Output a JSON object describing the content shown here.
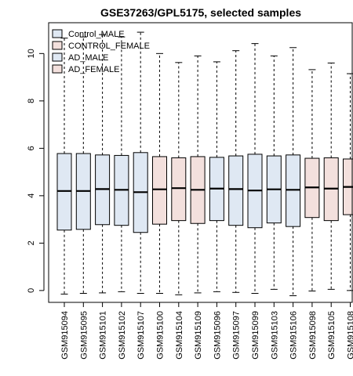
{
  "chart_data": {
    "type": "boxplot",
    "title": "GSE37263/GPL5175, selected samples",
    "ylim": [
      -0.5,
      11.3
    ],
    "yticks": [
      0,
      2,
      4,
      6,
      8,
      10
    ],
    "legend": [
      {
        "label": "Control_MALE",
        "color": "#dfe8f3"
      },
      {
        "label": "CONTROL_FEMALE",
        "color": "#f3e0dd"
      },
      {
        "label": "AD_MALE",
        "color": "#dfe8f3"
      },
      {
        "label": "AD_FEMALE",
        "color": "#f3e0dd"
      }
    ],
    "legend_position": "top-left",
    "boxes": [
      {
        "sample": "GSM915094",
        "group": 0,
        "whisker_low": -0.15,
        "q1": 2.55,
        "median": 4.2,
        "q3": 5.78,
        "whisker_high": 10.65
      },
      {
        "sample": "GSM915095",
        "group": 0,
        "whisker_low": -0.12,
        "q1": 2.58,
        "median": 4.2,
        "q3": 5.78,
        "whisker_high": 10.7
      },
      {
        "sample": "GSM915101",
        "group": 0,
        "whisker_low": -0.1,
        "q1": 2.78,
        "median": 4.28,
        "q3": 5.72,
        "whisker_high": 10.8
      },
      {
        "sample": "GSM915102",
        "group": 0,
        "whisker_low": -0.05,
        "q1": 2.75,
        "median": 4.25,
        "q3": 5.7,
        "whisker_high": 10.7
      },
      {
        "sample": "GSM915107",
        "group": 0,
        "whisker_low": -0.12,
        "q1": 2.45,
        "median": 4.15,
        "q3": 5.82,
        "whisker_high": 10.9
      },
      {
        "sample": "GSM915100",
        "group": 1,
        "whisker_low": -0.12,
        "q1": 2.8,
        "median": 4.27,
        "q3": 5.65,
        "whisker_high": 10.0
      },
      {
        "sample": "GSM915104",
        "group": 1,
        "whisker_low": -0.18,
        "q1": 2.95,
        "median": 4.32,
        "q3": 5.6,
        "whisker_high": 9.62
      },
      {
        "sample": "GSM915109",
        "group": 1,
        "whisker_low": -0.1,
        "q1": 2.83,
        "median": 4.25,
        "q3": 5.65,
        "whisker_high": 9.9
      },
      {
        "sample": "GSM915096",
        "group": 2,
        "whisker_low": -0.05,
        "q1": 2.95,
        "median": 4.3,
        "q3": 5.62,
        "whisker_high": 9.65
      },
      {
        "sample": "GSM915097",
        "group": 2,
        "whisker_low": -0.08,
        "q1": 2.75,
        "median": 4.28,
        "q3": 5.68,
        "whisker_high": 10.12
      },
      {
        "sample": "GSM915099",
        "group": 2,
        "whisker_low": -0.12,
        "q1": 2.65,
        "median": 4.22,
        "q3": 5.75,
        "whisker_high": 10.42
      },
      {
        "sample": "GSM915103",
        "group": 2,
        "whisker_low": 0.05,
        "q1": 2.85,
        "median": 4.27,
        "q3": 5.68,
        "whisker_high": 9.9
      },
      {
        "sample": "GSM915106",
        "group": 2,
        "whisker_low": -0.22,
        "q1": 2.7,
        "median": 4.25,
        "q3": 5.72,
        "whisker_high": 10.25
      },
      {
        "sample": "GSM915098",
        "group": 3,
        "whisker_low": -0.02,
        "q1": 3.08,
        "median": 4.35,
        "q3": 5.58,
        "whisker_high": 9.32
      },
      {
        "sample": "GSM915105",
        "group": 3,
        "whisker_low": 0.05,
        "q1": 2.95,
        "median": 4.3,
        "q3": 5.6,
        "whisker_high": 9.6
      },
      {
        "sample": "GSM915108",
        "group": 3,
        "whisker_low": 0.0,
        "q1": 3.2,
        "median": 4.37,
        "q3": 5.55,
        "whisker_high": 9.15
      }
    ]
  }
}
